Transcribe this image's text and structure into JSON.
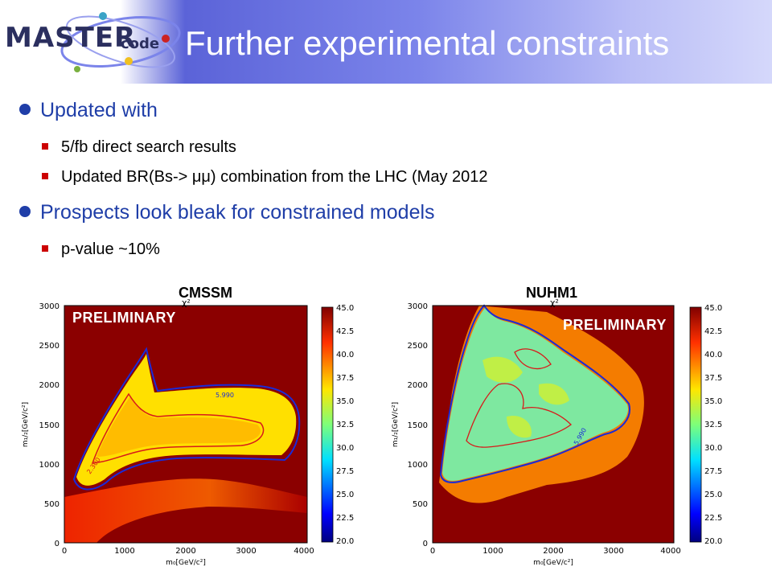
{
  "header": {
    "logo_text_main": "MASTER",
    "logo_text_sub": "code",
    "title": "Further experimental constraints"
  },
  "bullets": [
    {
      "text": "Updated with",
      "sub": [
        "5/fb direct search results",
        "Updated BR(Bs-> μμ) combination from the LHC (May 2012"
      ]
    },
    {
      "text": "Prospects look bleak for constrained models",
      "sub": [
        "p-value ~10%"
      ]
    }
  ],
  "plots": [
    {
      "title": "CMSSM",
      "chi_label": "χ²",
      "watermark": "PRELIMINARY",
      "x_ticks": [
        "0",
        "1000",
        "2000",
        "3000",
        "4000"
      ],
      "y_ticks": [
        "500",
        "1000",
        "1500",
        "2000",
        "2500",
        "3000"
      ],
      "y_zero": "0",
      "xlabel": "m₀[GeV/c²]",
      "ylabel": "m₁/₂[GeV/c²]",
      "contour_labels": [
        "5.990",
        "2.300"
      ]
    },
    {
      "title": "NUHM1",
      "chi_label": "χ²",
      "watermark": "PRELIMINARY",
      "x_ticks": [
        "0",
        "1000",
        "2000",
        "3000",
        "4000"
      ],
      "y_ticks": [
        "500",
        "1000",
        "1500",
        "2000",
        "2500",
        "3000"
      ],
      "y_zero": "0",
      "xlabel": "m₀[GeV/c²]",
      "ylabel": "m₁/₂[GeV/c²]",
      "contour_labels": [
        "5.990"
      ]
    }
  ],
  "colorbar": {
    "ticks": [
      "45.0",
      "42.5",
      "40.0",
      "37.5",
      "35.0",
      "32.5",
      "30.0",
      "27.5",
      "25.0",
      "22.5",
      "20.0"
    ]
  },
  "colors": {
    "header_blue": "#5b63d8",
    "bullet_blue": "#1f3ea8",
    "square_red": "#cc0000",
    "plot_background": "#8b0000"
  }
}
